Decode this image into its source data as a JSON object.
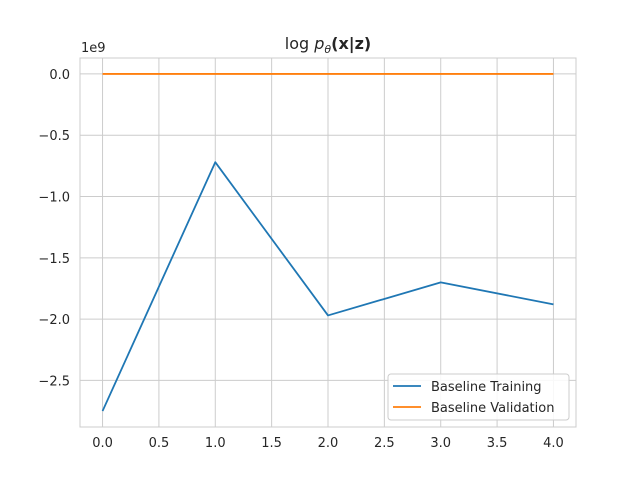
{
  "chart_data": {
    "type": "line",
    "title_prefix": "log",
    "title_var": "p",
    "title_sub": "θ",
    "title_args": "(x|z)",
    "xlabel": "",
    "ylabel": "",
    "offset_label": "1e9",
    "y_scale": 1000000000,
    "xlim": [
      -0.2,
      4.2
    ],
    "ylim": [
      -2.88,
      0.13
    ],
    "x_ticks": [
      0.0,
      0.5,
      1.0,
      1.5,
      2.0,
      2.5,
      3.0,
      3.5,
      4.0
    ],
    "x_tick_labels": [
      "0.0",
      "0.5",
      "1.0",
      "1.5",
      "2.0",
      "2.5",
      "3.0",
      "3.5",
      "4.0"
    ],
    "y_ticks": [
      0.0,
      -0.5,
      -1.0,
      -1.5,
      -2.0,
      -2.5
    ],
    "y_tick_labels": [
      "0.0",
      "−0.5",
      "−1.0",
      "−1.5",
      "−2.0",
      "−2.5"
    ],
    "grid": true,
    "legend_position": "lower-right",
    "x": [
      0,
      1,
      2,
      3,
      4
    ],
    "series": [
      {
        "name": "Baseline Training",
        "color": "#1f77b4",
        "values": [
          -2.75,
          -0.72,
          -1.97,
          -1.7,
          -1.88
        ]
      },
      {
        "name": "Baseline Validation",
        "color": "#ff7f0e",
        "values": [
          0.0,
          0.0,
          0.0,
          0.0,
          0.0
        ]
      }
    ]
  }
}
